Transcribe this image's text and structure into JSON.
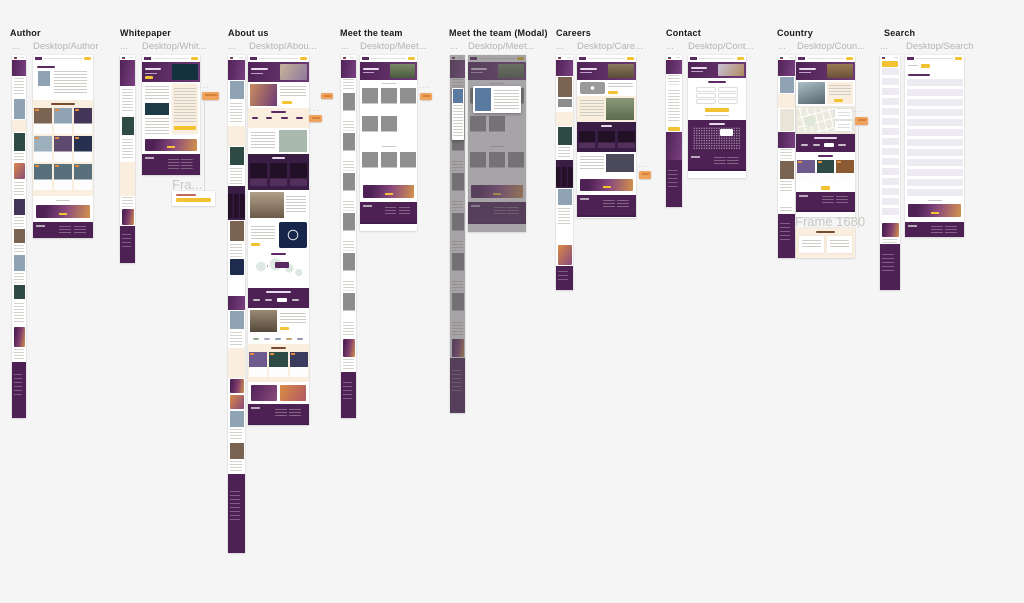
{
  "canvas": {
    "background": "#f5f5f5"
  },
  "sections": [
    {
      "title": "Author",
      "mobile_label": "...",
      "desktop_label": "Desktop/Author"
    },
    {
      "title": "Whitepaper",
      "mobile_label": "...",
      "desktop_label": "Desktop/Whit...",
      "note_dots": "...",
      "extra_frame_title": "Fra..."
    },
    {
      "title": "About us",
      "mobile_label": "...",
      "desktop_label": "Desktop/Abou...",
      "note_dots": "..."
    },
    {
      "title": "Meet the team",
      "mobile_label": "...",
      "desktop_label": "Desktop/Meet...",
      "note_dots": "..."
    },
    {
      "title": "Meet the team (Modal)",
      "mobile_label": "...",
      "desktop_label": "Desktop/Meet..."
    },
    {
      "title": "Careers",
      "mobile_label": "...",
      "desktop_label": "Desktop/Care...",
      "note_dots": "..."
    },
    {
      "title": "Contact",
      "mobile_label": "...",
      "desktop_label": "Desktop/Cont..."
    },
    {
      "title": "Country",
      "mobile_label": "...",
      "desktop_label": "Desktop/Coun...",
      "note_dots": "...",
      "extra_frame_title": "Frame 1680"
    },
    {
      "title": "Search",
      "mobile_label": "...",
      "desktop_label": "Desktop/Search"
    }
  ],
  "colors": {
    "canvas": "#f5f5f5",
    "section_title": "#1a1a1a",
    "frame_label": "#b4b4b8",
    "sticky_note": "#efa35d",
    "brand_purple": "#5b2a62",
    "footer_purple": "#4d2153",
    "cream": "#faeede",
    "accent_yellow": "#f2c233",
    "accent_orange": "#e58b3f"
  }
}
